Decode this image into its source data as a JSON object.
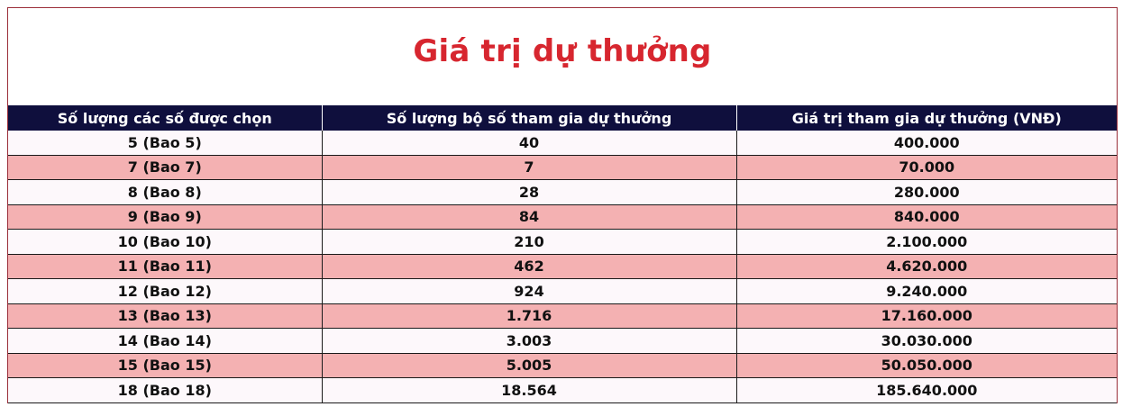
{
  "title": "Giá trị dự thưởng",
  "table": {
    "headers": [
      "Số lượng các số được chọn",
      "Số lượng bộ số tham gia dự thưởng",
      "Giá trị tham gia dự thưởng (VNĐ)"
    ],
    "rows": [
      [
        "5 (Bao 5)",
        "40",
        "400.000"
      ],
      [
        "7 (Bao 7)",
        "7",
        "70.000"
      ],
      [
        "8 (Bao 8)",
        "28",
        "280.000"
      ],
      [
        "9 (Bao 9)",
        "84",
        "840.000"
      ],
      [
        "10 (Bao 10)",
        "210",
        "2.100.000"
      ],
      [
        "11 (Bao 11)",
        "462",
        "4.620.000"
      ],
      [
        "12 (Bao 12)",
        "924",
        "9.240.000"
      ],
      [
        "13 (Bao 13)",
        "1.716",
        "17.160.000"
      ],
      [
        "14 (Bao 14)",
        "3.003",
        "30.030.000"
      ],
      [
        "15 (Bao 15)",
        "5.005",
        "50.050.000"
      ],
      [
        "18 (Bao 18)",
        "18.564",
        "185.640.000"
      ]
    ]
  },
  "colors": {
    "title": "#d7262f",
    "header_bg": "#0f0f3d",
    "row_light": "#fdf8fb",
    "row_pink": "#f4b1b2",
    "frame_border": "#9b2f3a"
  }
}
